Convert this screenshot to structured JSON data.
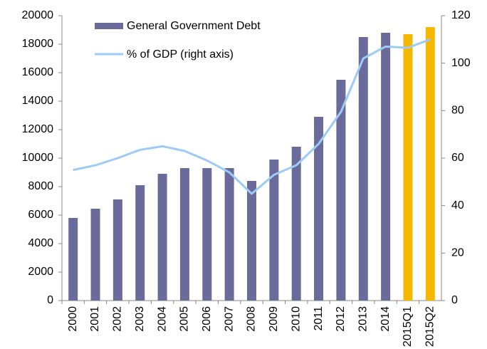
{
  "chart_data": {
    "type": "bar_line",
    "categories": [
      "2000",
      "2001",
      "2002",
      "2003",
      "2004",
      "2005",
      "2006",
      "2007",
      "2008",
      "2009",
      "2010",
      "2011",
      "2012",
      "2013",
      "2014",
      "2015Q1",
      "2015Q2"
    ],
    "series": [
      {
        "name": "General Government Debt",
        "type": "bar",
        "color": "#6b6b9b",
        "colors": [
          "#6b6b9b",
          "#6b6b9b",
          "#6b6b9b",
          "#6b6b9b",
          "#6b6b9b",
          "#6b6b9b",
          "#6b6b9b",
          "#6b6b9b",
          "#6b6b9b",
          "#6b6b9b",
          "#6b6b9b",
          "#6b6b9b",
          "#6b6b9b",
          "#6b6b9b",
          "#6b6b9b",
          "#f5b800",
          "#f5b800"
        ],
        "values": [
          5800,
          6450,
          7100,
          8100,
          8900,
          9300,
          9300,
          9300,
          8400,
          9900,
          10800,
          12900,
          15500,
          18500,
          18800,
          18700,
          19200
        ]
      },
      {
        "name": "% of GDP (right axis)",
        "type": "line",
        "axis": "y2",
        "color": "#9ccbf5",
        "values": [
          55,
          57,
          60,
          63.5,
          65,
          63,
          59,
          54,
          45,
          53,
          57,
          66,
          79.5,
          102,
          107,
          106.5,
          110
        ]
      }
    ],
    "ylim": [
      0,
      20000
    ],
    "yticks": [
      0,
      2000,
      4000,
      6000,
      8000,
      10000,
      12000,
      14000,
      16000,
      18000,
      20000
    ],
    "y2lim": [
      0,
      120
    ],
    "y2ticks": [
      0,
      20,
      40,
      60,
      80,
      100,
      120
    ],
    "grid": false,
    "legend": "top-left"
  }
}
